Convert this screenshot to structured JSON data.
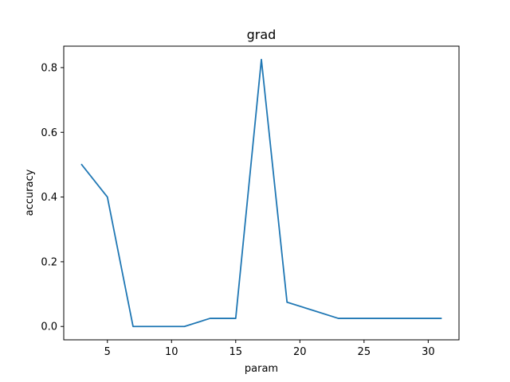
{
  "chart_data": {
    "type": "line",
    "title": "grad",
    "xlabel": "param",
    "ylabel": "accuracy",
    "xlim": [
      1.6,
      32.4
    ],
    "ylim": [
      -0.04125,
      0.86625
    ],
    "xticks": [
      5,
      10,
      15,
      20,
      25,
      30
    ],
    "yticks": [
      0.0,
      0.2,
      0.4,
      0.6,
      0.8
    ],
    "ytick_labels": [
      "0.0",
      "0.2",
      "0.4",
      "0.6",
      "0.8"
    ],
    "grid": false,
    "legend": "none",
    "series": [
      {
        "color": "#1f77b4",
        "x": [
          3,
          5,
          7,
          9,
          11,
          13,
          15,
          17,
          19,
          21,
          23,
          25,
          27,
          29,
          31
        ],
        "y": [
          0.5,
          0.4,
          0.0,
          0.0,
          0.0,
          0.025,
          0.025,
          0.825,
          0.075,
          0.05,
          0.025,
          0.025,
          0.025,
          0.025,
          0.025
        ]
      }
    ]
  }
}
